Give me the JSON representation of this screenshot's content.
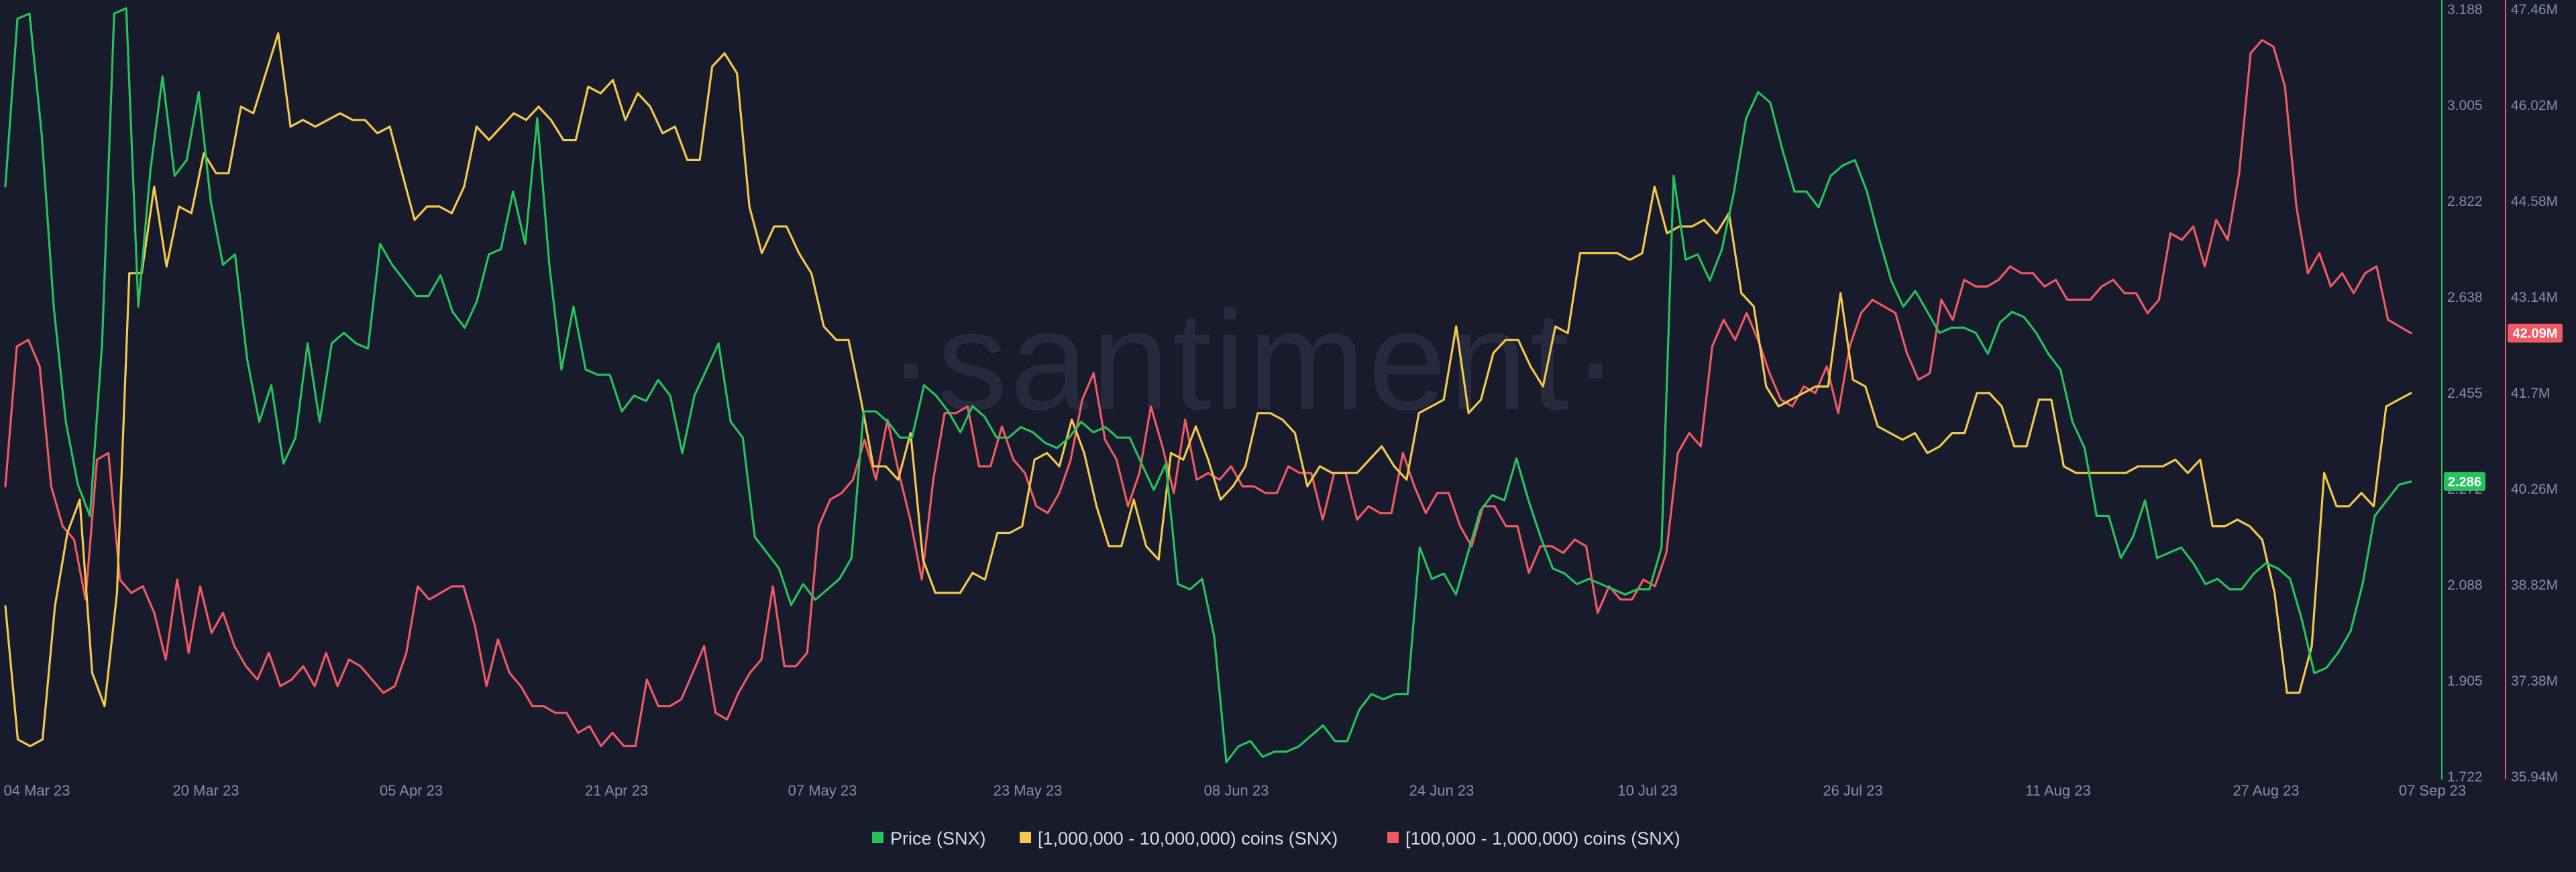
{
  "watermark": "·santiment·",
  "colors": {
    "background": "#181b2b",
    "price": "#26c25c",
    "large_holders": "#f2c94c",
    "mid_holders": "#ef5a63",
    "tick_text": "#878ca3"
  },
  "chart_data": {
    "type": "line",
    "title": "",
    "x_ticks": [
      "04 Mar 23",
      "20 Mar 23",
      "05 Apr 23",
      "21 Apr 23",
      "07 May 23",
      "23 May 23",
      "08 Jun 23",
      "24 Jun 23",
      "10 Jul 23",
      "26 Jul 23",
      "11 Aug 23",
      "27 Aug 23",
      "07 Sep 23"
    ],
    "x_start": "2023-03-01",
    "x_end": "2023-09-07",
    "legend": {
      "position": "bottom-center"
    },
    "grid": false,
    "axes": {
      "price": {
        "side": "right-inner",
        "ticks": [
          "3.188",
          "3.005",
          "2.822",
          "2.638",
          "2.455",
          "2.272",
          "2.088",
          "1.905",
          "1.722"
        ],
        "ylim": [
          1.722,
          3.188
        ]
      },
      "holders": {
        "side": "right-outer",
        "ticks": [
          "47.46M",
          "46.02M",
          "44.58M",
          "43.14M",
          "41.7M",
          "40.26M",
          "38.82M",
          "37.38M",
          "35.94M"
        ],
        "ylim": [
          35.94,
          47.46
        ],
        "unit": "M"
      }
    },
    "series": [
      {
        "name": "Price (SNX)",
        "key": "price",
        "axis": "price",
        "last_value_label": "2.286",
        "values": [
          2.85,
          3.17,
          3.18,
          2.95,
          2.62,
          2.4,
          2.28,
          2.22,
          2.55,
          3.18,
          3.19,
          2.62,
          2.88,
          3.06,
          2.87,
          2.9,
          3.03,
          2.82,
          2.7,
          2.72,
          2.52,
          2.4,
          2.47,
          2.32,
          2.37,
          2.55,
          2.4,
          2.55,
          2.57,
          2.55,
          2.54,
          2.74,
          2.7,
          2.67,
          2.64,
          2.64,
          2.68,
          2.61,
          2.58,
          2.63,
          2.72,
          2.73,
          2.84,
          2.74,
          2.98,
          2.7,
          2.5,
          2.62,
          2.5,
          2.49,
          2.49,
          2.42,
          2.45,
          2.44,
          2.48,
          2.45,
          2.34,
          2.45,
          2.5,
          2.55,
          2.4,
          2.37,
          2.18,
          2.15,
          2.12,
          2.05,
          2.09,
          2.06,
          2.08,
          2.1,
          2.14,
          2.42,
          2.42,
          2.4,
          2.37,
          2.37,
          2.47,
          2.45,
          2.42,
          2.38,
          2.43,
          2.41,
          2.37,
          2.37,
          2.39,
          2.38,
          2.36,
          2.35,
          2.37,
          2.4,
          2.38,
          2.39,
          2.37,
          2.37,
          2.32,
          2.27,
          2.32,
          2.09,
          2.08,
          2.1,
          1.99,
          1.75,
          1.78,
          1.79,
          1.76,
          1.77,
          1.77,
          1.78,
          1.8,
          1.82,
          1.79,
          1.79,
          1.85,
          1.88,
          1.87,
          1.88,
          1.88,
          2.16,
          2.1,
          2.11,
          2.07,
          2.15,
          2.23,
          2.26,
          2.25,
          2.33,
          2.25,
          2.18,
          2.12,
          2.11,
          2.09,
          2.1,
          2.09,
          2.08,
          2.07,
          2.08,
          2.08,
          2.16,
          2.87,
          2.71,
          2.72,
          2.67,
          2.73,
          2.84,
          2.98,
          3.03,
          3.01,
          2.92,
          2.84,
          2.84,
          2.81,
          2.87,
          2.89,
          2.9,
          2.84,
          2.75,
          2.67,
          2.62,
          2.65,
          2.61,
          2.57,
          2.58,
          2.58,
          2.57,
          2.53,
          2.59,
          2.61,
          2.6,
          2.57,
          2.53,
          2.5,
          2.4,
          2.35,
          2.22,
          2.22,
          2.14,
          2.18,
          2.25,
          2.14,
          2.15,
          2.16,
          2.13,
          2.09,
          2.1,
          2.08,
          2.08,
          2.11,
          2.13,
          2.12,
          2.1,
          2.02,
          1.92,
          1.93,
          1.96,
          2.0,
          2.09,
          2.22,
          2.25,
          2.28,
          2.286
        ]
      },
      {
        "name": "[1,000,000 - 10,000,000) coins (SNX)",
        "key": "large",
        "axis": "holders",
        "values": [
          38.5,
          36.5,
          36.4,
          36.5,
          38.5,
          39.6,
          40.1,
          37.5,
          37.0,
          38.7,
          43.5,
          43.5,
          44.8,
          43.6,
          44.5,
          44.4,
          45.3,
          45.0,
          45.0,
          46.0,
          45.9,
          46.5,
          47.1,
          45.7,
          45.8,
          45.7,
          45.8,
          45.9,
          45.8,
          45.8,
          45.6,
          45.7,
          45.0,
          44.3,
          44.5,
          44.5,
          44.4,
          44.8,
          45.7,
          45.5,
          45.7,
          45.9,
          45.8,
          46.0,
          45.8,
          45.5,
          45.5,
          46.3,
          46.2,
          46.4,
          45.8,
          46.2,
          46.0,
          45.6,
          45.7,
          45.2,
          45.2,
          46.6,
          46.8,
          46.5,
          44.5,
          43.8,
          44.2,
          44.2,
          43.8,
          43.5,
          42.7,
          42.5,
          42.5,
          41.6,
          40.6,
          40.6,
          40.4,
          41.1,
          39.2,
          38.7,
          38.7,
          38.7,
          39.0,
          38.9,
          39.6,
          39.6,
          39.7,
          40.7,
          40.8,
          40.6,
          41.3,
          40.8,
          40.0,
          39.4,
          39.4,
          40.1,
          39.4,
          39.2,
          40.8,
          40.7,
          41.2,
          40.7,
          40.1,
          40.3,
          40.6,
          41.4,
          41.4,
          41.3,
          41.1,
          40.3,
          40.6,
          40.5,
          40.5,
          40.5,
          40.7,
          40.9,
          40.6,
          40.4,
          41.4,
          41.5,
          41.6,
          42.7,
          41.4,
          41.6,
          42.3,
          42.5,
          42.5,
          42.1,
          41.8,
          42.7,
          42.6,
          43.8,
          43.8,
          43.8,
          43.8,
          43.7,
          43.8,
          44.8,
          44.1,
          44.2,
          44.2,
          44.3,
          44.1,
          44.4,
          43.2,
          43.0,
          41.8,
          41.5,
          41.6,
          41.7,
          41.8,
          41.8,
          43.2,
          41.9,
          41.8,
          41.2,
          41.1,
          41.0,
          41.1,
          40.8,
          40.9,
          41.1,
          41.1,
          41.7,
          41.7,
          41.5,
          40.9,
          40.9,
          41.6,
          41.6,
          40.6,
          40.5,
          40.5,
          40.5,
          40.5,
          40.5,
          40.6,
          40.6,
          40.6,
          40.7,
          40.5,
          40.7,
          39.7,
          39.7,
          39.8,
          39.7,
          39.5,
          38.7,
          37.2,
          37.2,
          37.9,
          40.5,
          40.0,
          40.0,
          40.2,
          40.0,
          41.5,
          41.6,
          41.7
        ]
      },
      {
        "name": "[100,000  - 1,000,000) coins (SNX)",
        "key": "mid",
        "axis": "holders",
        "values": [
          40.3,
          42.4,
          42.5,
          42.1,
          40.3,
          39.7,
          39.5,
          38.6,
          40.7,
          40.8,
          38.9,
          38.7,
          38.8,
          38.4,
          37.7,
          38.9,
          37.8,
          38.8,
          38.1,
          38.4,
          37.9,
          37.6,
          37.4,
          37.8,
          37.3,
          37.4,
          37.6,
          37.3,
          37.8,
          37.3,
          37.7,
          37.6,
          37.4,
          37.2,
          37.3,
          37.8,
          38.8,
          38.6,
          38.7,
          38.8,
          38.8,
          38.2,
          37.3,
          38.0,
          37.5,
          37.3,
          37.0,
          37.0,
          36.9,
          36.9,
          36.6,
          36.7,
          36.4,
          36.6,
          36.4,
          36.4,
          37.4,
          37.0,
          37.0,
          37.1,
          37.5,
          37.9,
          36.9,
          36.8,
          37.2,
          37.5,
          37.7,
          38.8,
          37.6,
          37.6,
          37.8,
          39.7,
          40.1,
          40.2,
          40.4,
          41.0,
          40.4,
          41.3,
          40.5,
          39.8,
          38.9,
          40.4,
          41.4,
          41.4,
          41.5,
          40.6,
          40.6,
          41.2,
          40.7,
          40.5,
          40.0,
          39.9,
          40.2,
          40.7,
          41.6,
          42.0,
          41.0,
          40.7,
          40.0,
          40.5,
          41.5,
          40.9,
          40.2,
          41.3,
          40.4,
          40.5,
          40.4,
          40.6,
          40.3,
          40.3,
          40.2,
          40.2,
          40.6,
          40.5,
          40.5,
          39.8,
          40.5,
          40.5,
          39.8,
          40.0,
          39.9,
          39.9,
          40.8,
          40.3,
          39.9,
          40.2,
          40.2,
          39.7,
          39.4,
          40.0,
          40.0,
          39.7,
          39.7,
          39.0,
          39.4,
          39.4,
          39.3,
          39.5,
          39.4,
          38.4,
          38.8,
          38.6,
          38.6,
          38.9,
          38.8,
          39.3,
          40.8,
          41.1,
          40.9,
          42.4,
          42.8,
          42.5,
          42.9,
          42.5,
          42.0,
          41.6,
          41.5,
          41.8,
          41.7,
          42.1,
          41.4,
          42.4,
          42.9,
          43.1,
          43.0,
          42.9,
          42.3,
          41.9,
          42.0,
          43.1,
          42.8,
          43.4,
          43.3,
          43.3,
          43.4,
          43.6,
          43.5,
          43.5,
          43.3,
          43.4,
          43.1,
          43.1,
          43.1,
          43.3,
          43.4,
          43.2,
          43.2,
          42.9,
          43.1,
          44.1,
          44.0,
          44.2,
          43.6,
          44.3,
          44.0,
          45.0,
          46.8,
          47.0,
          46.9,
          46.3,
          44.5,
          43.5,
          43.8,
          43.3,
          43.5,
          43.2,
          43.5,
          43.6,
          42.8,
          42.7,
          42.6
        ]
      }
    ],
    "last_value_badges": {
      "price": "2.286",
      "holders": "42.09M"
    }
  }
}
